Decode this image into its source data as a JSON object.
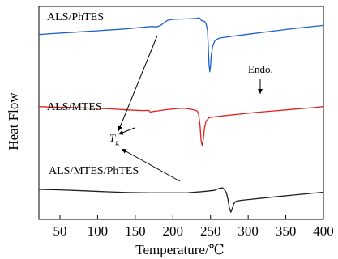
{
  "chart_data": {
    "type": "line",
    "title": "",
    "xlabel": "Temperature/℃",
    "ylabel": "Heat Flow",
    "xlim": [
      22,
      400
    ],
    "xticks": [
      50,
      100,
      150,
      200,
      250,
      300,
      350,
      400
    ],
    "yticks_shown": false,
    "grid": false,
    "legend": "none",
    "colors": {
      "ALS/PhTES": "#1f5fd1",
      "ALS/MTES": "#e02020",
      "ALS/MTES/PhTES": "#202020",
      "axis": "#000000"
    },
    "series": [
      {
        "name": "ALS/PhTES",
        "color": "#1f5fd1",
        "points": [
          [
            22,
            37.2
          ],
          [
            40,
            37.8
          ],
          [
            60,
            38.4
          ],
          [
            80,
            39.0
          ],
          [
            100,
            39.6
          ],
          [
            120,
            40.2
          ],
          [
            140,
            40.9
          ],
          [
            160,
            41.8
          ],
          [
            172,
            42.3
          ],
          [
            178,
            42.0
          ],
          [
            183,
            42.8
          ],
          [
            188,
            44.5
          ],
          [
            193,
            46.2
          ],
          [
            200,
            46.8
          ],
          [
            210,
            47.0
          ],
          [
            220,
            47.1
          ],
          [
            228,
            47.3
          ],
          [
            232,
            47.4
          ],
          [
            234,
            47.8
          ],
          [
            236,
            47.4
          ],
          [
            238,
            46.0
          ],
          [
            242,
            45.5
          ],
          [
            244,
            44.2
          ],
          [
            246,
            40.0
          ],
          [
            247,
            30.0
          ],
          [
            248,
            18.0
          ],
          [
            249,
            13.5
          ],
          [
            250,
            17.0
          ],
          [
            251,
            24.0
          ],
          [
            253,
            30.0
          ],
          [
            256,
            33.5
          ],
          [
            262,
            35.0
          ],
          [
            280,
            36.2
          ],
          [
            300,
            37.4
          ],
          [
            320,
            38.6
          ],
          [
            340,
            39.8
          ],
          [
            360,
            41.0
          ],
          [
            380,
            42.0
          ],
          [
            400,
            43.0
          ]
        ]
      },
      {
        "name": "ALS/MTES",
        "color": "#e02020",
        "points": [
          [
            22,
            -8.5
          ],
          [
            40,
            -8.8
          ],
          [
            60,
            -9.0
          ],
          [
            80,
            -9.3
          ],
          [
            100,
            -9.6
          ],
          [
            120,
            -10.0
          ],
          [
            140,
            -10.6
          ],
          [
            160,
            -11.0
          ],
          [
            168,
            -10.9
          ],
          [
            170,
            -12.0
          ],
          [
            174,
            -11.6
          ],
          [
            180,
            -11.2
          ],
          [
            190,
            -10.5
          ],
          [
            200,
            -10.0
          ],
          [
            210,
            -9.6
          ],
          [
            215,
            -9.5
          ],
          [
            222,
            -10.0
          ],
          [
            228,
            -10.6
          ],
          [
            232,
            -11.2
          ],
          [
            234,
            -13.0
          ],
          [
            236,
            -20.0
          ],
          [
            237.5,
            -30.0
          ],
          [
            239,
            -33.5
          ],
          [
            240.5,
            -29.0
          ],
          [
            242,
            -22.0
          ],
          [
            244,
            -18.0
          ],
          [
            248,
            -15.5
          ],
          [
            255,
            -15.0
          ],
          [
            270,
            -14.2
          ],
          [
            290,
            -13.2
          ],
          [
            310,
            -12.2
          ],
          [
            330,
            -11.4
          ],
          [
            350,
            -10.6
          ],
          [
            370,
            -9.8
          ],
          [
            385,
            -9.2
          ],
          [
            400,
            -8.5
          ]
        ]
      },
      {
        "name": "ALS/MTES/PhTES",
        "color": "#202020",
        "points": [
          [
            22,
            -61.0
          ],
          [
            50,
            -61.3
          ],
          [
            80,
            -61.9
          ],
          [
            110,
            -62.5
          ],
          [
            140,
            -63.0
          ],
          [
            170,
            -63.2
          ],
          [
            200,
            -63.2
          ],
          [
            220,
            -63.1
          ],
          [
            240,
            -62.4
          ],
          [
            255,
            -61.6
          ],
          [
            262,
            -60.3
          ],
          [
            266,
            -60.1
          ],
          [
            268,
            -60.8
          ],
          [
            271,
            -63.0
          ],
          [
            273,
            -67.0
          ],
          [
            275,
            -72.5
          ],
          [
            277,
            -75.5
          ],
          [
            279,
            -73.0
          ],
          [
            281,
            -70.0
          ],
          [
            284,
            -68.5
          ],
          [
            290,
            -68.0
          ],
          [
            300,
            -67.5
          ],
          [
            320,
            -66.5
          ],
          [
            340,
            -65.5
          ],
          [
            360,
            -64.6
          ],
          [
            380,
            -63.7
          ],
          [
            400,
            -62.8
          ]
        ]
      }
    ],
    "annotations": {
      "tg_label_main": "T",
      "tg_label_sub": "g",
      "endo_label": "Endo."
    }
  }
}
